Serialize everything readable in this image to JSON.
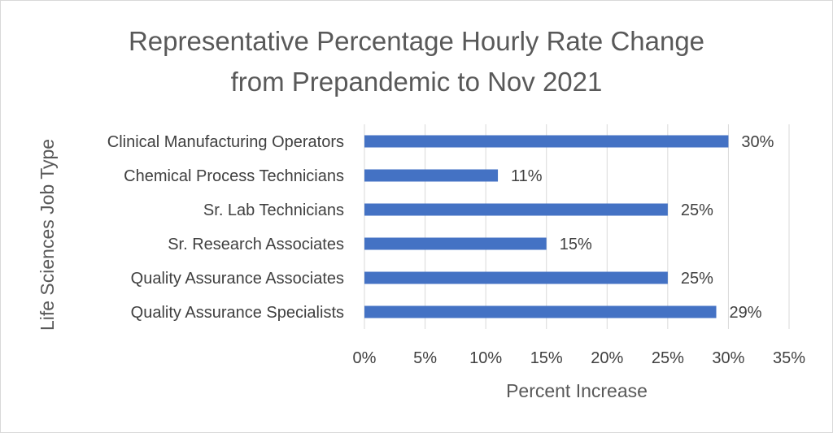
{
  "chart_data": {
    "type": "bar",
    "orientation": "horizontal",
    "title_lines": [
      "Representative Percentage Hourly Rate Change",
      "from Prepandemic to Nov 2021"
    ],
    "xlabel": "Percent Increase",
    "ylabel": "Life Sciences Job Type",
    "categories": [
      "Clinical Manufacturing Operators",
      "Chemical Process Technicians",
      "Sr. Lab Technicians",
      "Sr. Research Associates",
      "Quality Assurance Associates",
      "Quality Assurance Specialists"
    ],
    "values": [
      30,
      11,
      25,
      15,
      25,
      29
    ],
    "data_labels": [
      "30%",
      "11%",
      "25%",
      "15%",
      "25%",
      "29%"
    ],
    "xlim": [
      0,
      35
    ],
    "xticks": [
      0,
      5,
      10,
      15,
      20,
      25,
      30,
      35
    ],
    "xtick_labels": [
      "0%",
      "5%",
      "10%",
      "15%",
      "20%",
      "25%",
      "30%",
      "35%"
    ],
    "grid": "vertical",
    "legend": "none",
    "bar_color": "#4472c4",
    "grid_color": "#d9d9d9"
  }
}
